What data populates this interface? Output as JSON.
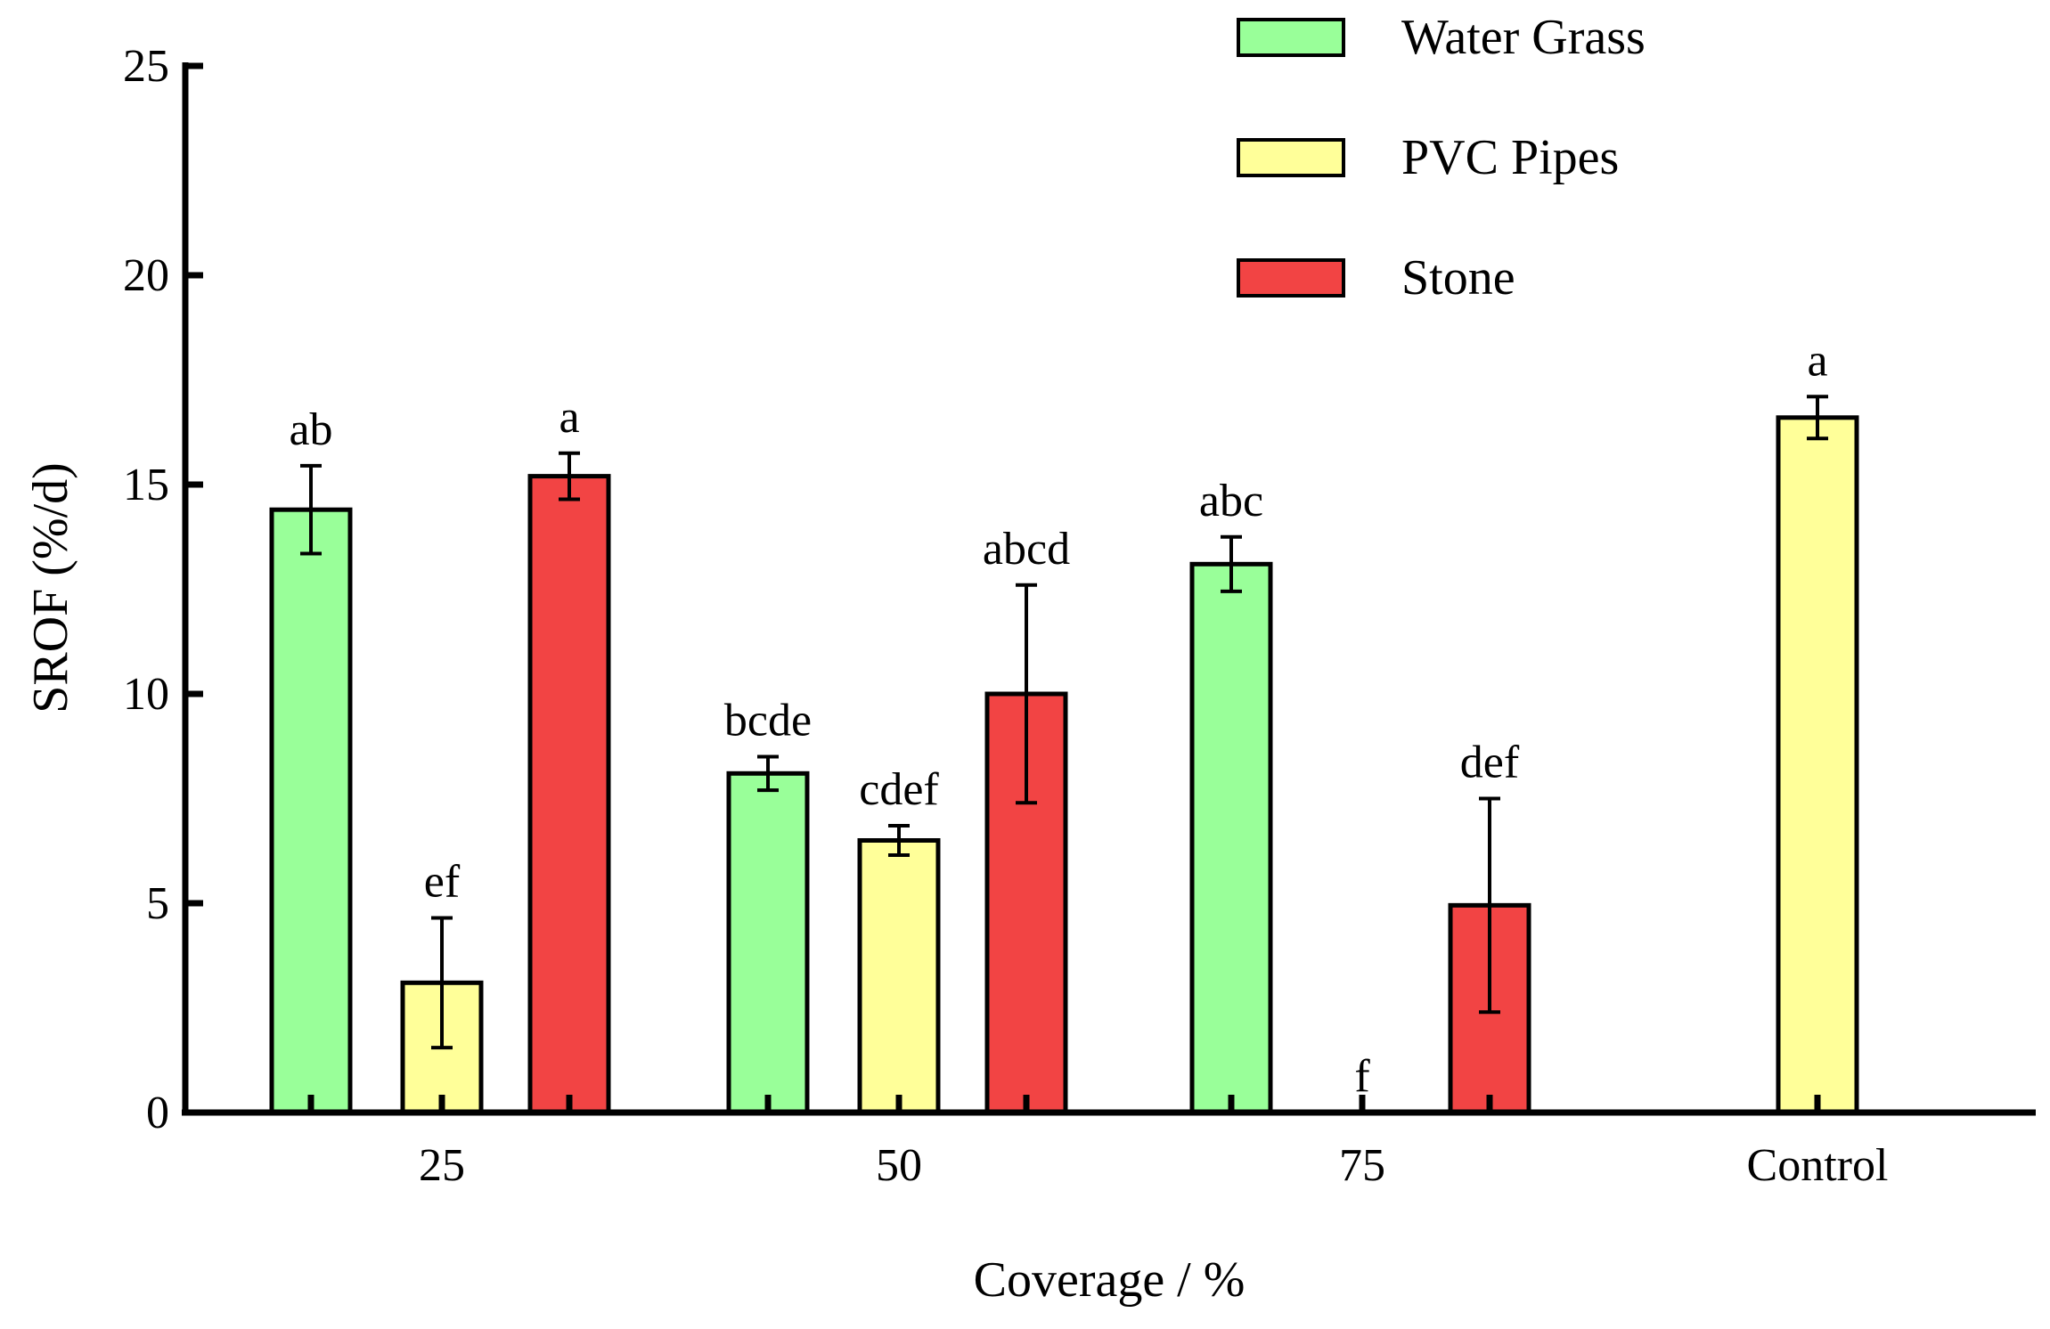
{
  "chart_data": {
    "type": "bar",
    "title": "",
    "xlabel": "Coverage / %",
    "ylabel": "SROF (%/d)",
    "ylim": [
      0,
      25
    ],
    "yticks": [
      "0",
      "5",
      "10",
      "15",
      "20",
      "25"
    ],
    "categories": [
      "25",
      "50",
      "75",
      "Control"
    ],
    "legend_position": "top-right",
    "grid": false,
    "series": [
      {
        "name": "Water Grass",
        "color": "#99ff99",
        "values": [
          14.4,
          8.1,
          13.1,
          null
        ],
        "errors": [
          1.05,
          0.4,
          0.65,
          null
        ],
        "labels": [
          "ab",
          "bcde",
          "abc",
          null
        ]
      },
      {
        "name": "PVC Pipes",
        "color": "#ffff99",
        "values": [
          3.1,
          6.5,
          0,
          16.6
        ],
        "errors": [
          1.55,
          0.35,
          0,
          0.5
        ],
        "labels": [
          "ef",
          "cdef",
          "f",
          "a"
        ]
      },
      {
        "name": "Stone",
        "color": "#f24444",
        "values": [
          15.2,
          10.0,
          4.95,
          null
        ],
        "errors": [
          0.55,
          2.6,
          2.55,
          null
        ],
        "labels": [
          "a",
          "abcd",
          "def",
          null
        ]
      }
    ]
  }
}
